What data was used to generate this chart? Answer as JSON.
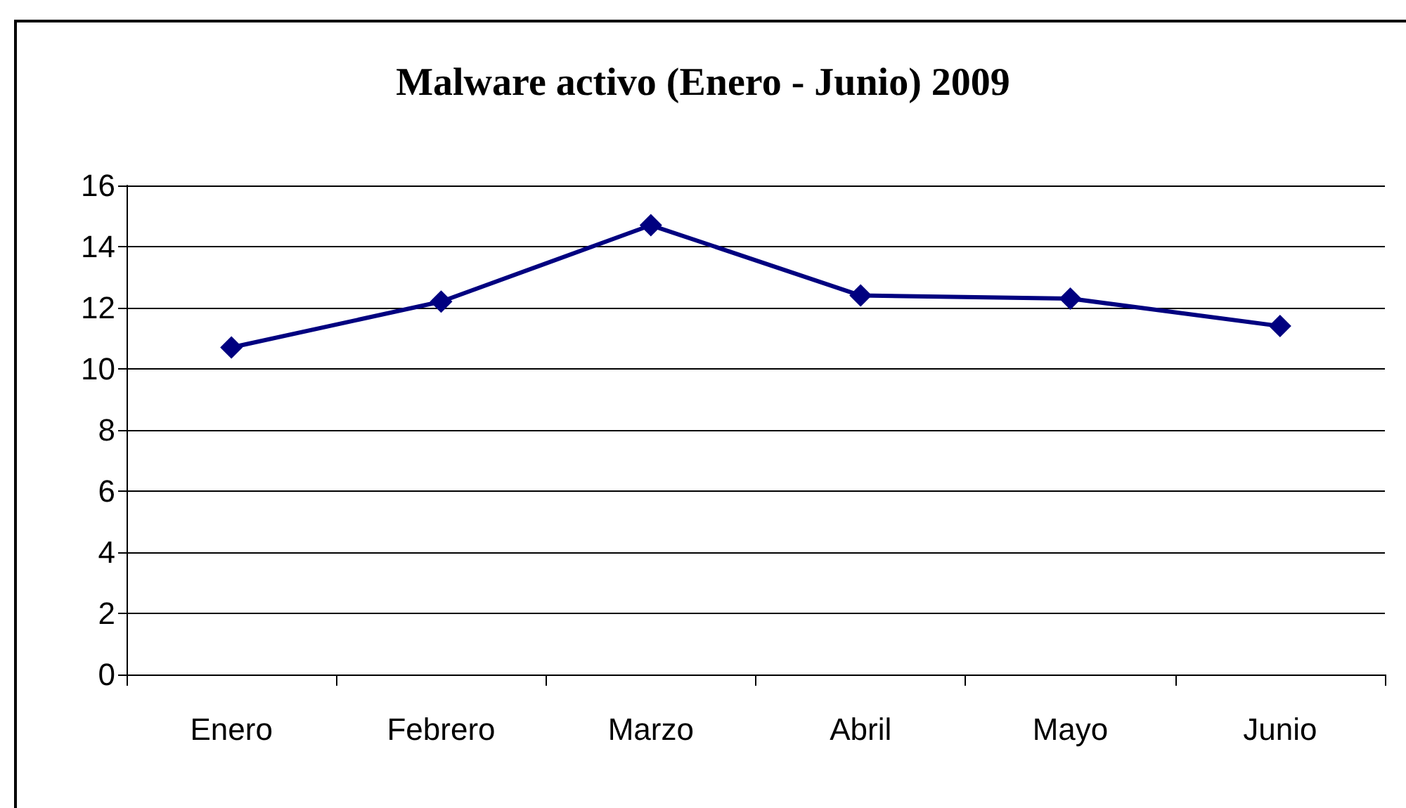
{
  "chart_data": {
    "type": "line",
    "title": "Malware activo (Enero - Junio) 2009",
    "categories": [
      "Enero",
      "Febrero",
      "Marzo",
      "Abril",
      "Mayo",
      "Junio"
    ],
    "series": [
      {
        "color": "#000080",
        "values": [
          10.7,
          12.2,
          14.7,
          12.4,
          12.3,
          11.4
        ]
      }
    ],
    "ylim": [
      0,
      16
    ],
    "yticks": [
      0,
      2,
      4,
      6,
      8,
      10,
      12,
      14,
      16
    ],
    "grid": "y",
    "marker": "diamond",
    "line_style": "solid"
  }
}
